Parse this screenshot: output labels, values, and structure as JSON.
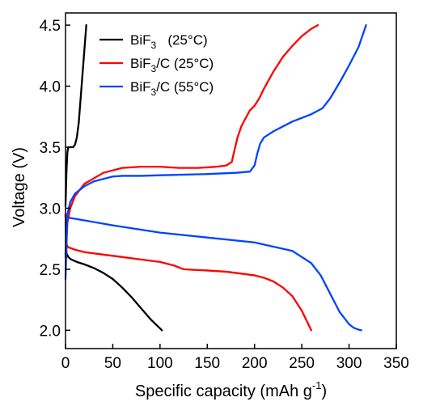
{
  "chart_data": {
    "type": "line",
    "xlabel": "Specific capacity (mAh g-1)",
    "ylabel": "Voltage (V)",
    "xlim": [
      0,
      350
    ],
    "ylim": [
      1.85,
      4.6
    ],
    "x_ticks": [
      0,
      50,
      100,
      150,
      200,
      250,
      300,
      350
    ],
    "y_ticks": [
      2.0,
      2.5,
      3.0,
      3.5,
      4.0,
      4.5
    ],
    "y_tick_labels": [
      "2.0",
      "2.5",
      "3.0",
      "3.5",
      "4.0",
      "4.5"
    ],
    "grid": false,
    "legend_position": "top-left",
    "series": [
      {
        "name": "BiF3 (25°C)",
        "legend_parts": {
          "main": "BiF",
          "sub": "3",
          "tail": "(25°C)"
        },
        "color": "#000000",
        "curves": [
          {
            "label": "discharge",
            "x": [
              0,
              1,
              3,
              6,
              12,
              20,
              30,
              40,
              50,
              60,
              70,
              80,
              90,
              102
            ],
            "y": [
              2.95,
              2.63,
              2.6,
              2.58,
              2.56,
              2.54,
              2.51,
              2.47,
              2.42,
              2.35,
              2.27,
              2.18,
              2.09,
              2.0
            ]
          },
          {
            "label": "charge",
            "x": [
              0,
              1,
              2,
              3,
              5,
              8,
              10,
              12,
              14,
              16,
              18,
              20,
              22
            ],
            "y": [
              3.02,
              3.3,
              3.46,
              3.5,
              3.5,
              3.5,
              3.52,
              3.58,
              3.7,
              3.9,
              4.1,
              4.3,
              4.5
            ]
          }
        ]
      },
      {
        "name": "BiF3/C (25°C)",
        "legend_parts": {
          "main": "BiF",
          "sub": "3",
          "tail": "/C (25°C)"
        },
        "color": "#ff0000",
        "curves": [
          {
            "label": "discharge",
            "x": [
              0,
              1,
              3,
              10,
              20,
              40,
              60,
              80,
              100,
              115,
              125,
              135,
              150,
              170,
              190,
              200,
              210,
              220,
              230,
              240,
              250,
              255,
              260
            ],
            "y": [
              2.95,
              2.7,
              2.68,
              2.66,
              2.64,
              2.62,
              2.6,
              2.58,
              2.56,
              2.53,
              2.5,
              2.495,
              2.49,
              2.48,
              2.46,
              2.45,
              2.43,
              2.4,
              2.35,
              2.28,
              2.16,
              2.08,
              2.0
            ]
          },
          {
            "label": "charge",
            "x": [
              0,
              2,
              5,
              10,
              20,
              40,
              60,
              80,
              100,
              120,
              140,
              160,
              170,
              176,
              178,
              182,
              186,
              190,
              195,
              200,
              205,
              210,
              220,
              230,
              240,
              250,
              260,
              267
            ],
            "y": [
              2.62,
              2.88,
              3.0,
              3.1,
              3.2,
              3.29,
              3.33,
              3.34,
              3.34,
              3.33,
              3.33,
              3.34,
              3.35,
              3.38,
              3.45,
              3.58,
              3.67,
              3.73,
              3.8,
              3.84,
              3.9,
              3.98,
              4.12,
              4.24,
              4.33,
              4.41,
              4.47,
              4.5
            ]
          }
        ]
      },
      {
        "name": "BiF3/C (55°C)",
        "legend_parts": {
          "main": "BiF",
          "sub": "3",
          "tail": "/C (55°C)"
        },
        "color": "#0044ff",
        "curves": [
          {
            "label": "discharge",
            "x": [
              0,
              2,
              5,
              20,
              50,
              100,
              150,
              200,
              240,
              260,
              270,
              280,
              290,
              300,
              305,
              310,
              313
            ],
            "y": [
              2.6,
              2.93,
              2.92,
              2.9,
              2.86,
              2.8,
              2.76,
              2.72,
              2.65,
              2.55,
              2.45,
              2.3,
              2.15,
              2.05,
              2.02,
              2.005,
              2.0
            ]
          },
          {
            "label": "charge",
            "x": [
              0,
              2,
              5,
              10,
              20,
              30,
              40,
              50,
              60,
              80,
              100,
              150,
              180,
              195,
              200,
              203,
              206,
              210,
              220,
              240,
              260,
              272,
              280,
              290,
              300,
              310,
              318
            ],
            "y": [
              2.42,
              2.95,
              3.05,
              3.12,
              3.18,
              3.22,
              3.24,
              3.26,
              3.265,
              3.265,
              3.27,
              3.28,
              3.29,
              3.3,
              3.35,
              3.45,
              3.53,
              3.58,
              3.63,
              3.71,
              3.77,
              3.82,
              3.9,
              4.03,
              4.17,
              4.32,
              4.5
            ]
          }
        ]
      }
    ]
  }
}
